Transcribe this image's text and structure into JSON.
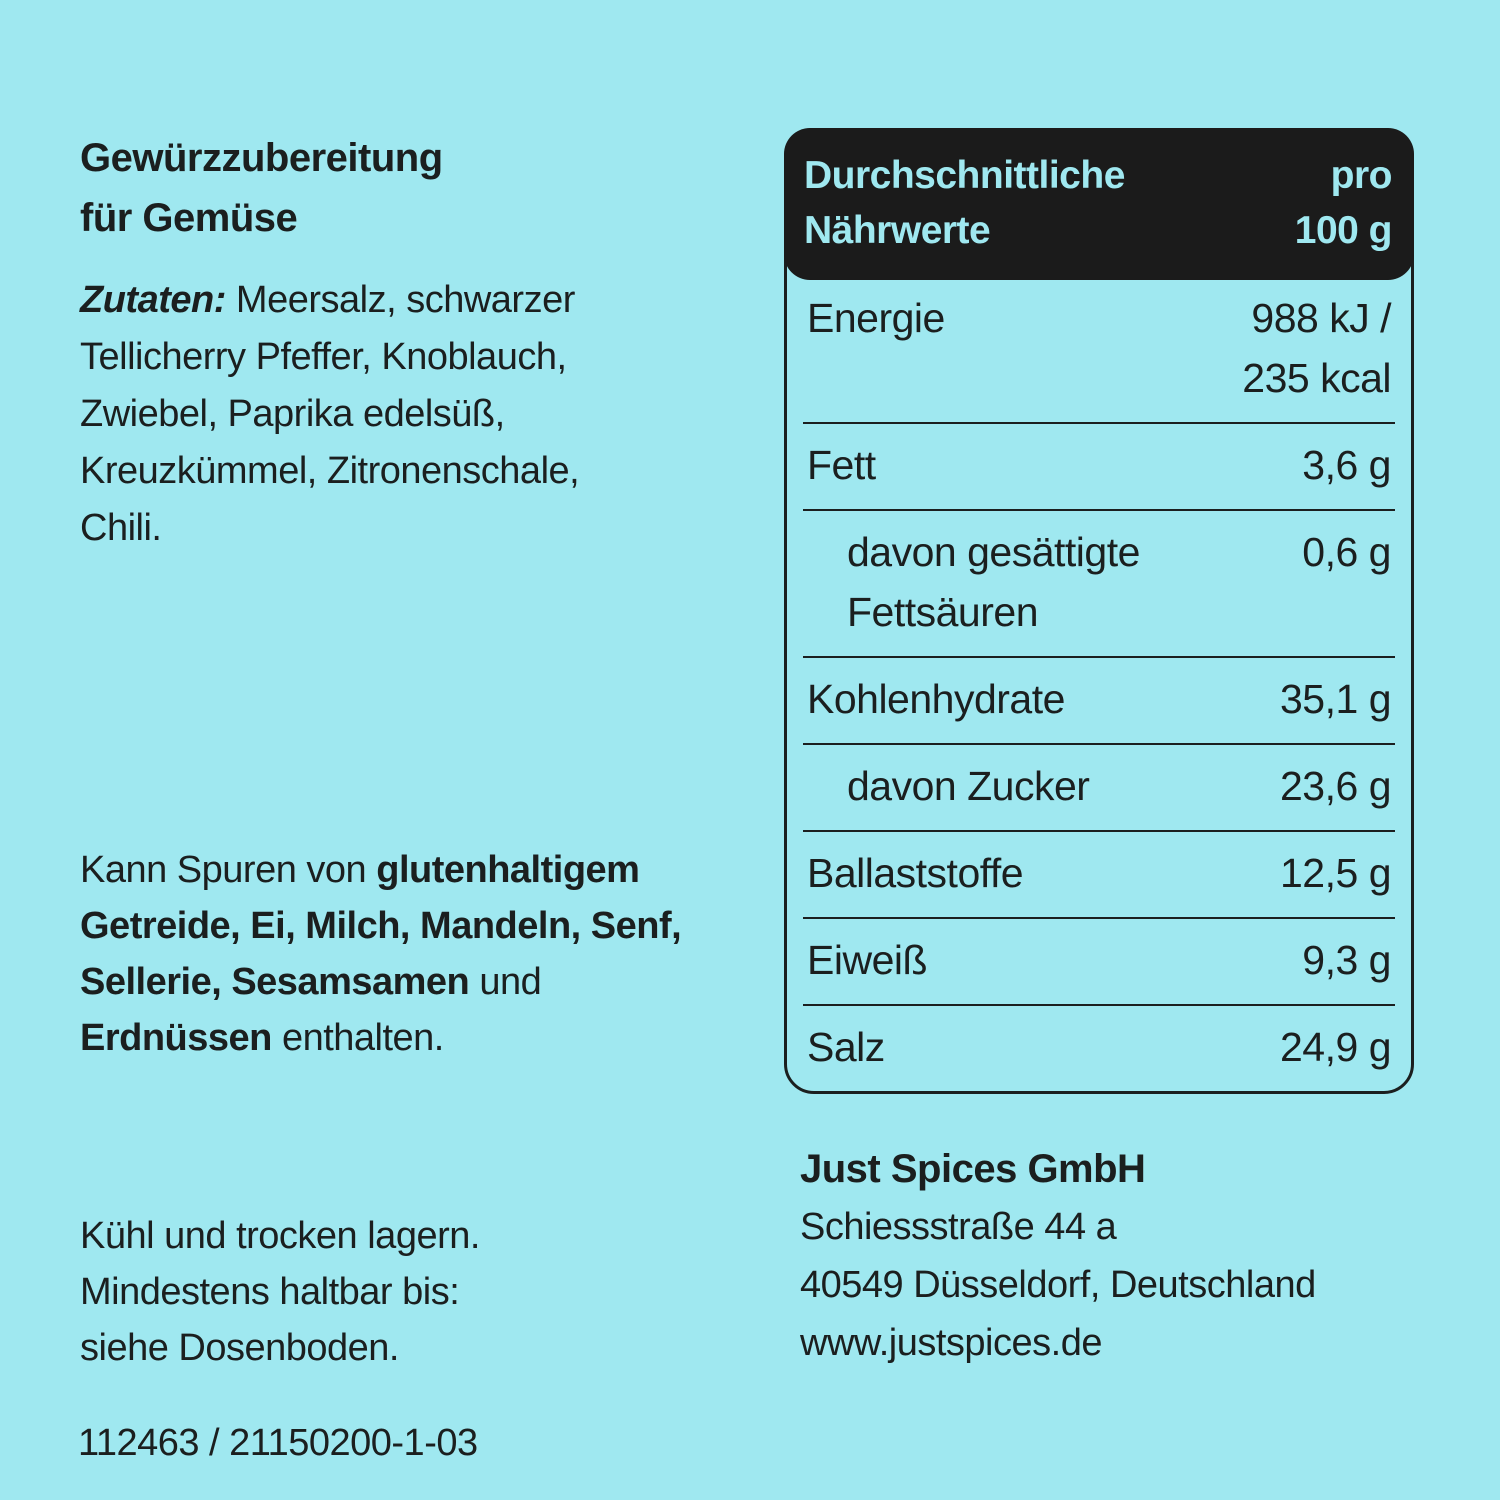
{
  "colors": {
    "background": "#9fe8f0",
    "text": "#1b1f1f",
    "table_header_background": "#1b1b1b",
    "table_header_text": "#9fe8f0"
  },
  "left_column": {
    "product_title": {
      "line1": "Gewürzzubereitung",
      "line2": "für Gemüse"
    },
    "ingredients_lines": [
      [
        {
          "t": "Zutaten:",
          "i": 1
        },
        {
          "t": " Meersalz, schwarzer"
        }
      ],
      [
        {
          "t": "Tellicherry Pfeffer, Knoblauch,"
        }
      ],
      [
        {
          "t": "Zwiebel, Paprika edelsüß,"
        }
      ],
      [
        {
          "t": "Kreuzkümmel, Zitronenschale,"
        }
      ],
      [
        {
          "t": "Chili."
        }
      ]
    ],
    "allergen_lines": [
      [
        {
          "t": "Kann Spuren von "
        },
        {
          "t": "glutenhaltigem",
          "b": 1
        }
      ],
      [
        {
          "t": "Getreide, Ei, Milch, Mandeln, Senf,",
          "b": 1
        }
      ],
      [
        {
          "t": "Sellerie, Sesamsamen",
          "b": 1
        },
        {
          "t": " und"
        }
      ],
      [
        {
          "t": "Erdnüssen",
          "b": 1
        },
        {
          "t": " enthalten."
        }
      ]
    ],
    "storage_lines": [
      [
        {
          "t": "Kühl und trocken lagern."
        }
      ],
      [
        {
          "t": "Mindestens haltbar bis:"
        }
      ],
      [
        {
          "t": "siehe Dosenboden."
        }
      ]
    ],
    "batch_code": "112463 / 21150200-1-03"
  },
  "nutrition_table": {
    "header": {
      "left_line1": "Durchschnittliche",
      "left_line2": "Nährwerte",
      "right_line1": "pro",
      "right_line2": "100 g"
    },
    "rows": [
      {
        "label": "Energie",
        "value": "988 kJ /",
        "value2": "235 kcal",
        "indent": false
      },
      {
        "label": "Fett",
        "value": "3,6 g",
        "indent": false
      },
      {
        "label": "davon gesättigte",
        "label2": "Fettsäuren",
        "value": "0,6 g",
        "indent": true
      },
      {
        "label": "Kohlenhydrate",
        "value": "35,1 g",
        "indent": false
      },
      {
        "label": "davon Zucker",
        "value": "23,6 g",
        "indent": true
      },
      {
        "label": "Ballaststoffe",
        "value": "12,5 g",
        "indent": false
      },
      {
        "label": "Eiweiß",
        "value": "9,3 g",
        "indent": false
      },
      {
        "label": "Salz",
        "value": "24,9 g",
        "indent": false
      }
    ]
  },
  "manufacturer": {
    "name": "Just Spices GmbH",
    "street": "Schiessstraße 44 a",
    "city": "40549 Düsseldorf, Deutschland",
    "website": "www.justspices.de"
  }
}
